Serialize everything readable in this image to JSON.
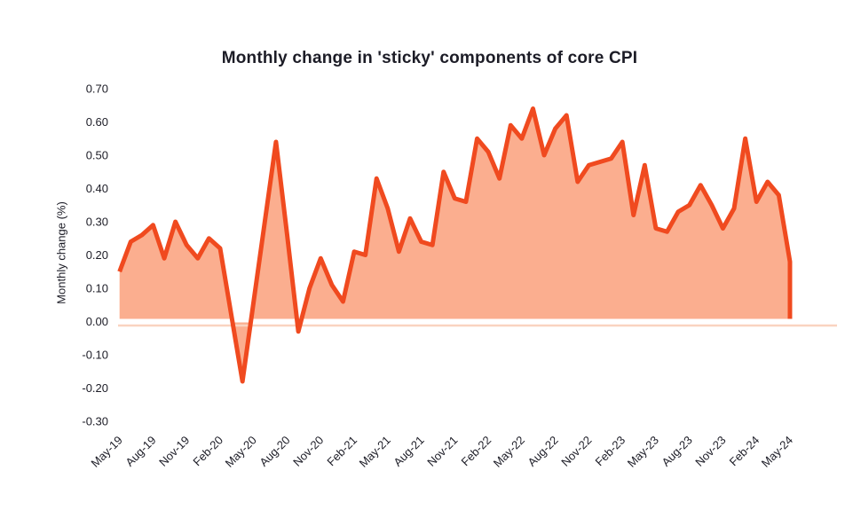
{
  "chart_data": {
    "type": "area",
    "title": "Monthly change in 'sticky' components of core CPI",
    "xlabel": "",
    "ylabel": "Monthly change (%)",
    "x": [
      "May-19",
      "Jun-19",
      "Jul-19",
      "Aug-19",
      "Sep-19",
      "Oct-19",
      "Nov-19",
      "Dec-19",
      "Jan-20",
      "Feb-20",
      "Mar-20",
      "Apr-20",
      "May-20",
      "Jun-20",
      "Jul-20",
      "Aug-20",
      "Sep-20",
      "Oct-20",
      "Nov-20",
      "Dec-20",
      "Jan-21",
      "Feb-21",
      "Mar-21",
      "Apr-21",
      "May-21",
      "Jun-21",
      "Jul-21",
      "Aug-21",
      "Sep-21",
      "Oct-21",
      "Nov-21",
      "Dec-21",
      "Jan-22",
      "Feb-22",
      "Mar-22",
      "Apr-22",
      "May-22",
      "Jun-22",
      "Jul-22",
      "Aug-22",
      "Sep-22",
      "Oct-22",
      "Nov-22",
      "Dec-22",
      "Jan-23",
      "Feb-23",
      "Mar-23",
      "Apr-23",
      "May-23",
      "Jun-23",
      "Jul-23",
      "Aug-23",
      "Sep-23",
      "Oct-23",
      "Nov-23",
      "Dec-23",
      "Jan-24",
      "Feb-24",
      "Mar-24",
      "Apr-24",
      "May-24"
    ],
    "values": [
      0.15,
      0.24,
      0.26,
      0.29,
      0.19,
      0.3,
      0.23,
      0.19,
      0.25,
      0.22,
      0.02,
      -0.18,
      0.06,
      0.3,
      0.54,
      0.26,
      -0.03,
      0.1,
      0.19,
      0.11,
      0.06,
      0.21,
      0.2,
      0.43,
      0.34,
      0.21,
      0.31,
      0.24,
      0.23,
      0.45,
      0.37,
      0.36,
      0.55,
      0.51,
      0.43,
      0.59,
      0.55,
      0.64,
      0.5,
      0.58,
      0.62,
      0.42,
      0.47,
      0.48,
      0.49,
      0.54,
      0.32,
      0.47,
      0.28,
      0.27,
      0.33,
      0.35,
      0.41,
      0.35,
      0.28,
      0.34,
      0.55,
      0.36,
      0.42,
      0.38,
      0.18
    ],
    "x_tick_every": 3,
    "x_tick_rotation_deg": -45,
    "y_tick_labels": [
      "0.70",
      "0.60",
      "0.50",
      "0.40",
      "0.30",
      "0.20",
      "0.10",
      "0.00",
      "-0.10",
      "-0.20",
      "-0.30"
    ],
    "ylim": [
      -0.3,
      0.7
    ],
    "grid": false,
    "legend": "none",
    "colors": {
      "line": "#F04A1F",
      "fill": "#FBAE8F",
      "zero_gridline": "#FFFFFF",
      "baseline": "#FAD3C0",
      "text": "#1c1c26"
    }
  }
}
